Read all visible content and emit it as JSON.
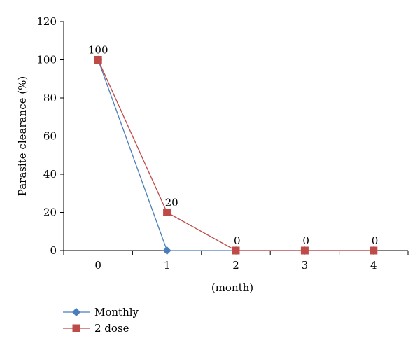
{
  "chart_data": {
    "type": "line",
    "x": [
      0,
      1,
      2,
      3,
      4
    ],
    "xtick_labels": [
      "0",
      "1",
      "2",
      "3",
      "4"
    ],
    "xlabel": "(month)",
    "ylabel": "Parasite clearance (%)",
    "ylim": [
      0,
      120
    ],
    "yticks": [
      0,
      20,
      40,
      60,
      80,
      100,
      120
    ],
    "ytick_labels": [
      "0",
      "20",
      "40",
      "60",
      "80",
      "100",
      "120"
    ],
    "grid": false,
    "legend_position": "bottom-left",
    "series": [
      {
        "name": "Monthly",
        "values": [
          100,
          0,
          0,
          0,
          0
        ],
        "color": "#4a7ebb",
        "marker": "diamond",
        "data_labels": []
      },
      {
        "name": "2 dose",
        "values": [
          100,
          20,
          0,
          0,
          0
        ],
        "color": "#be4b48",
        "marker": "square",
        "data_labels": [
          "100",
          "20",
          "0",
          "0",
          "0"
        ]
      }
    ]
  }
}
